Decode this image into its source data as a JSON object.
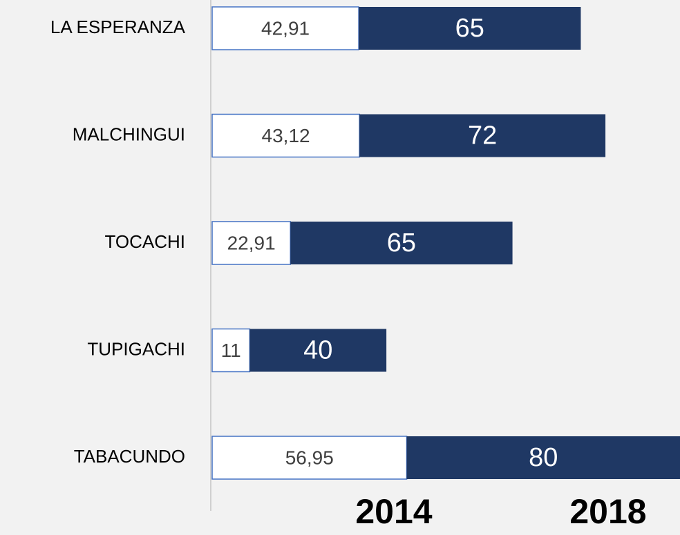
{
  "chart_data": {
    "type": "stacked_bar_horizontal",
    "categories": [
      "LA ESPERANZA",
      "MALCHINGUI",
      "TOCACHI",
      "TUPIGACHI",
      "TABACUNDO"
    ],
    "series": [
      {
        "name": "2014",
        "color": "#ffffff",
        "values": [
          42.91,
          43.12,
          22.91,
          11,
          56.95
        ],
        "value_labels": [
          "42,91",
          "43,12",
          "22,91",
          "11",
          "56,95"
        ]
      },
      {
        "name": "2018",
        "color": "#1f3864",
        "values": [
          65,
          72,
          65,
          40,
          80
        ]
      }
    ]
  }
}
